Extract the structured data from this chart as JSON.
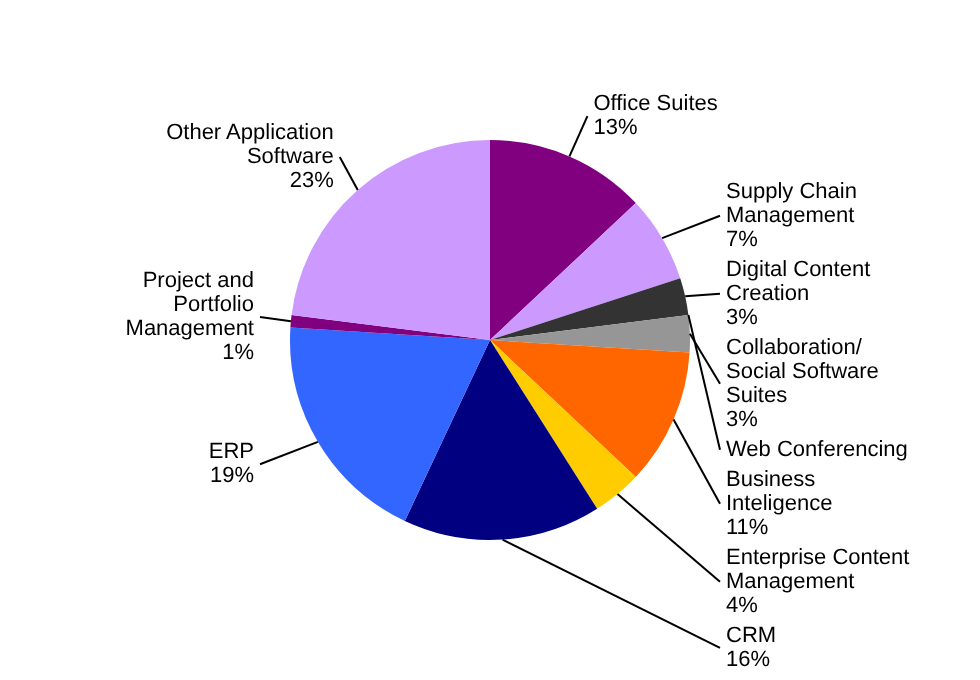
{
  "chart_data": {
    "type": "pie",
    "categories": [
      "Office Suites",
      "Supply Chain Management",
      "Digital Content Creation",
      "Web Conferencing",
      "Collaboration/Social Software Suites",
      "Business Inteligence",
      "Enterprise Content Management",
      "CRM",
      "ERP",
      "Project and Portfolio Management",
      "Other Application Software"
    ],
    "values": [
      13,
      7,
      3,
      0,
      3,
      11,
      4,
      16,
      19,
      1,
      23
    ],
    "value_labels": [
      "13%",
      "7%",
      "3%",
      null,
      "3%",
      "11%",
      "4%",
      "16%",
      "19%",
      "1%",
      "23%"
    ],
    "colors": [
      "#800080",
      "#cc99ff",
      "#333333",
      "#666666",
      "#969696",
      "#ff6600",
      "#ffcc00",
      "#000080",
      "#3366ff",
      "#800080",
      "#cc99ff"
    ],
    "legend": false
  }
}
